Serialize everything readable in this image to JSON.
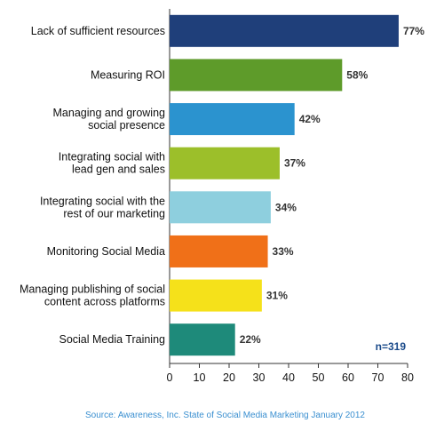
{
  "chart_data": {
    "type": "bar",
    "orientation": "horizontal",
    "categories": [
      "Lack of sufficient resources",
      "Measuring ROI",
      "Managing and growing\nsocial presence",
      "Integrating social with\nlead gen and sales",
      "Integrating social with the\nrest of our marketing",
      "Monitoring Social Media",
      "Managing publishing of social\ncontent across platforms",
      "Social Media Training"
    ],
    "values": [
      77,
      58,
      42,
      37,
      34,
      33,
      31,
      22
    ],
    "value_labels": [
      "77%",
      "58%",
      "42%",
      "37%",
      "34%",
      "33%",
      "31%",
      "22%"
    ],
    "colors": [
      "#1f3f7a",
      "#5e9b2a",
      "#2b93cf",
      "#9cbf2a",
      "#8ecfde",
      "#f07018",
      "#f5e11a",
      "#1e8a7a"
    ],
    "xlim": [
      0,
      80
    ],
    "xticks": [
      0,
      10,
      20,
      30,
      40,
      50,
      60,
      70,
      80
    ],
    "grid": false,
    "annotation": "n=319",
    "source": "Source: Awareness, Inc. State of Social Media Marketing January 2012"
  }
}
